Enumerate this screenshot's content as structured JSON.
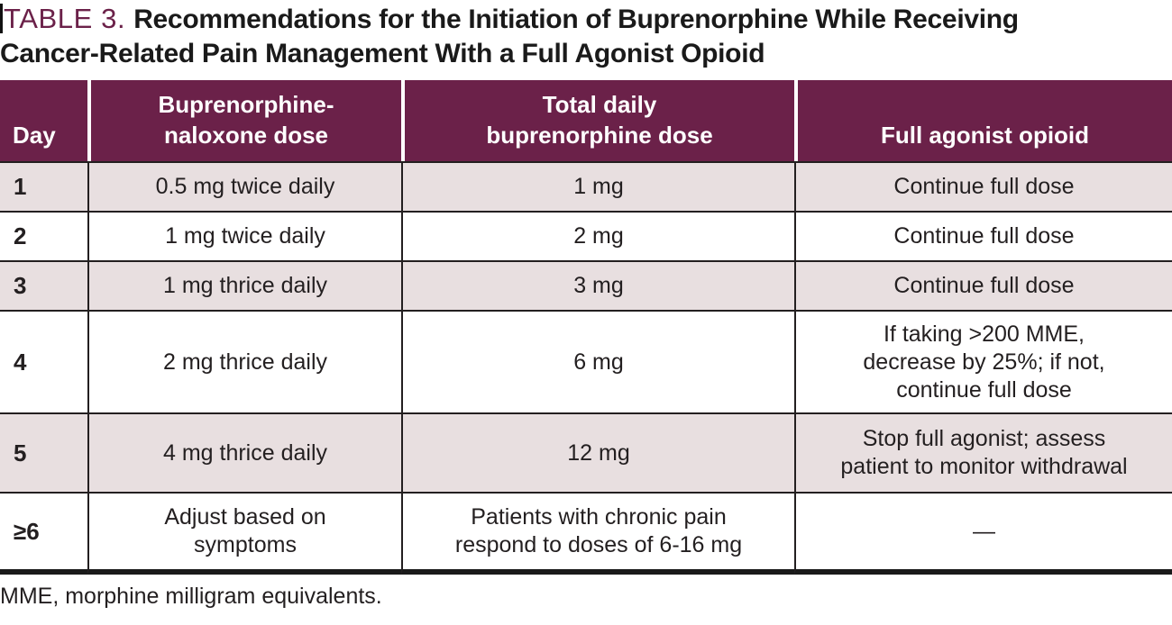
{
  "title": {
    "label": "TABLE 3.",
    "text": "Recommendations for the Initiation of Buprenorphine While Receiving\nCancer-Related Pain Management With a Full Agonist Opioid"
  },
  "table": {
    "headers": {
      "day": "Day",
      "bup_naloxone": "Buprenorphine-\nnaloxone dose",
      "total_daily": "Total daily\nbuprenorphine dose",
      "full_agonist": "Full agonist opioid"
    },
    "rows": [
      {
        "day": "1",
        "bup_naloxone": "0.5 mg twice daily",
        "total_daily": "1 mg",
        "full_agonist": "Continue full dose"
      },
      {
        "day": "2",
        "bup_naloxone": "1 mg twice daily",
        "total_daily": "2 mg",
        "full_agonist": "Continue full dose"
      },
      {
        "day": "3",
        "bup_naloxone": "1 mg thrice daily",
        "total_daily": "3 mg",
        "full_agonist": "Continue full dose"
      },
      {
        "day": "4",
        "bup_naloxone": "2 mg thrice daily",
        "total_daily": "6 mg",
        "full_agonist": "If taking >200 MME,\ndecrease by 25%; if not,\ncontinue full dose"
      },
      {
        "day": "5",
        "bup_naloxone": "4 mg thrice daily",
        "total_daily": "12 mg",
        "full_agonist": "Stop full agonist; assess\npatient to monitor withdrawal"
      },
      {
        "day": "≥6",
        "bup_naloxone": "Adjust based on\nsymptoms",
        "total_daily": "Patients with chronic pain\nrespond to doses of 6-16 mg",
        "full_agonist": "—"
      }
    ]
  },
  "footnote": "MME, morphine milligram equivalents.",
  "colors": {
    "header_bg": "#6B2149",
    "alt_row_bg": "#E8DFE0",
    "accent": "#6B2149",
    "text": "#231F20",
    "border": "#231F20"
  }
}
